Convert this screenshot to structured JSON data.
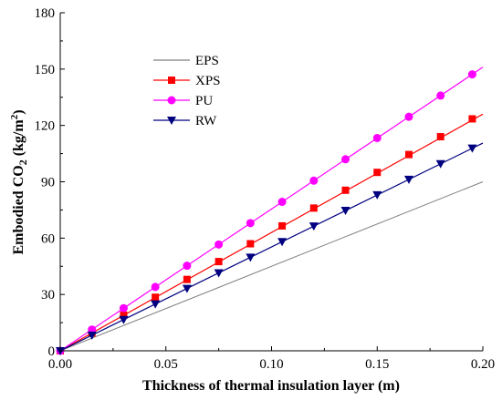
{
  "chart_data": {
    "type": "line",
    "xlabel": "Thickness of thermal insulation layer (m)",
    "ylabel": {
      "prefix": "Embodied CO",
      "sub": "2",
      "unit_open": " (kg/m",
      "sup": "2",
      "unit_close": ")"
    },
    "xlim": [
      0,
      0.2
    ],
    "ylim": [
      0,
      180
    ],
    "x_ticks": [
      "0.00",
      "0.05",
      "0.10",
      "0.15",
      "0.20"
    ],
    "y_ticks": [
      "0",
      "30",
      "60",
      "90",
      "120",
      "150",
      "180"
    ],
    "grid": false,
    "legend_position": "upper-left",
    "series": [
      {
        "name": "EPS",
        "color": "#7f7f7f",
        "marker": "none",
        "slope": 450,
        "x": [
          0,
          0.2
        ],
        "y": [
          0,
          90
        ]
      },
      {
        "name": "XPS",
        "color": "#ff0000",
        "marker": "square",
        "slope": 630,
        "x": [
          0,
          0.015,
          0.03,
          0.045,
          0.06,
          0.075,
          0.09,
          0.105,
          0.12,
          0.135,
          0.15,
          0.165,
          0.18,
          0.195
        ],
        "y": [
          0,
          9.5,
          19,
          28.5,
          38,
          47.5,
          57,
          66.5,
          76,
          85.5,
          95,
          104.5,
          114,
          123.5
        ]
      },
      {
        "name": "PU",
        "color": "#ff00ff",
        "marker": "circle",
        "slope": 755,
        "x": [
          0,
          0.015,
          0.03,
          0.045,
          0.06,
          0.075,
          0.09,
          0.105,
          0.12,
          0.135,
          0.15,
          0.165,
          0.18,
          0.195
        ],
        "y": [
          0,
          11.3,
          22.7,
          34,
          45.3,
          56.6,
          68,
          79.3,
          90.6,
          102,
          113.3,
          124.6,
          135.9,
          147.2
        ]
      },
      {
        "name": "RW",
        "color": "#000080",
        "marker": "triangle-down",
        "slope": 553,
        "x": [
          0,
          0.015,
          0.03,
          0.045,
          0.06,
          0.075,
          0.09,
          0.105,
          0.12,
          0.135,
          0.15,
          0.165,
          0.18,
          0.195
        ],
        "y": [
          0,
          8.3,
          16.6,
          24.9,
          33.2,
          41.5,
          49.8,
          58.1,
          66.4,
          74.7,
          83,
          91.3,
          99.6,
          107.9
        ]
      }
    ]
  }
}
